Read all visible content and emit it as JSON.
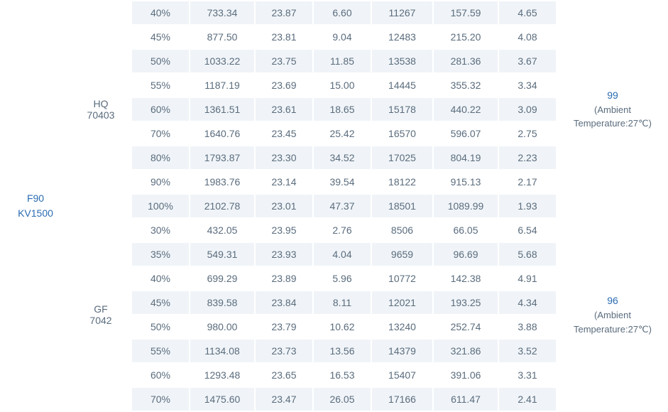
{
  "table": {
    "motor": {
      "name": "F90",
      "kv": "KV1500"
    },
    "groups": [
      {
        "id": "hq70403",
        "variant_line1": "HQ",
        "variant_line2": "70403",
        "temp_value": "99",
        "temp_note_line1": "(Ambient",
        "temp_note_line2": "Temperature:27℃)",
        "rows": [
          {
            "pct": "40%",
            "c1": "733.34",
            "c2": "23.87",
            "c3": "6.60",
            "c4": "11267",
            "c5": "157.59",
            "c6": "4.65"
          },
          {
            "pct": "45%",
            "c1": "877.50",
            "c2": "23.81",
            "c3": "9.04",
            "c4": "12483",
            "c5": "215.20",
            "c6": "4.08"
          },
          {
            "pct": "50%",
            "c1": "1033.22",
            "c2": "23.75",
            "c3": "11.85",
            "c4": "13538",
            "c5": "281.36",
            "c6": "3.67"
          },
          {
            "pct": "55%",
            "c1": "1187.19",
            "c2": "23.69",
            "c3": "15.00",
            "c4": "14445",
            "c5": "355.32",
            "c6": "3.34"
          },
          {
            "pct": "60%",
            "c1": "1361.51",
            "c2": "23.61",
            "c3": "18.65",
            "c4": "15178",
            "c5": "440.22",
            "c6": "3.09"
          },
          {
            "pct": "70%",
            "c1": "1640.76",
            "c2": "23.45",
            "c3": "25.42",
            "c4": "16570",
            "c5": "596.07",
            "c6": "2.75"
          },
          {
            "pct": "80%",
            "c1": "1793.87",
            "c2": "23.30",
            "c3": "34.52",
            "c4": "17025",
            "c5": "804.19",
            "c6": "2.23"
          },
          {
            "pct": "90%",
            "c1": "1983.76",
            "c2": "23.14",
            "c3": "39.54",
            "c4": "18122",
            "c5": "915.13",
            "c6": "2.17"
          },
          {
            "pct": "100%",
            "c1": "2102.78",
            "c2": "23.01",
            "c3": "47.37",
            "c4": "18501",
            "c5": "1089.99",
            "c6": "1.93"
          }
        ]
      },
      {
        "id": "gf7042",
        "variant_line1": "GF",
        "variant_line2": "7042",
        "temp_value": "96",
        "temp_note_line1": "(Ambient",
        "temp_note_line2": "Temperature:27℃)",
        "rows": [
          {
            "pct": "30%",
            "c1": "432.05",
            "c2": "23.95",
            "c3": "2.76",
            "c4": "8506",
            "c5": "66.05",
            "c6": "6.54"
          },
          {
            "pct": "35%",
            "c1": "549.31",
            "c2": "23.93",
            "c3": "4.04",
            "c4": "9659",
            "c5": "96.69",
            "c6": "5.68"
          },
          {
            "pct": "40%",
            "c1": "699.29",
            "c2": "23.89",
            "c3": "5.96",
            "c4": "10772",
            "c5": "142.38",
            "c6": "4.91"
          },
          {
            "pct": "45%",
            "c1": "839.58",
            "c2": "23.84",
            "c3": "8.11",
            "c4": "12021",
            "c5": "193.25",
            "c6": "4.34"
          },
          {
            "pct": "50%",
            "c1": "980.00",
            "c2": "23.79",
            "c3": "10.62",
            "c4": "13240",
            "c5": "252.74",
            "c6": "3.88"
          },
          {
            "pct": "55%",
            "c1": "1134.08",
            "c2": "23.73",
            "c3": "13.56",
            "c4": "14379",
            "c5": "321.86",
            "c6": "3.52"
          },
          {
            "pct": "60%",
            "c1": "1293.48",
            "c2": "23.65",
            "c3": "16.53",
            "c4": "15407",
            "c5": "391.06",
            "c6": "3.31"
          },
          {
            "pct": "70%",
            "c1": "1475.60",
            "c2": "23.47",
            "c3": "26.05",
            "c4": "17166",
            "c5": "611.47",
            "c6": "2.41"
          }
        ]
      }
    ],
    "colors": {
      "stripe_a": "#f0f4f8",
      "stripe_b": "#ffffff",
      "text_primary": "#5a6c7d",
      "text_accent": "#2a6bb3",
      "group_border": "#d7dee5"
    }
  }
}
